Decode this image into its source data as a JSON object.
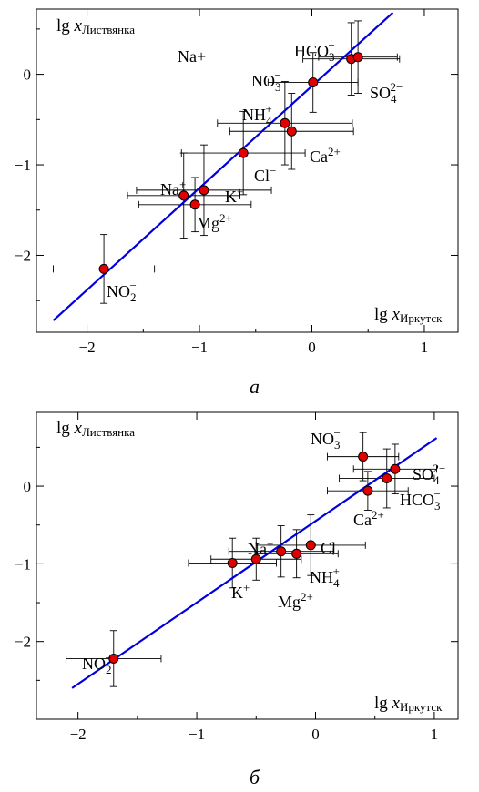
{
  "chart_data": [
    {
      "type": "scatter",
      "panel_label": "а",
      "xlabel_prefix": "lg ",
      "xlabel_var": "x",
      "xlabel_sub": "Иркутск",
      "ylabel_prefix": "lg ",
      "ylabel_var": "x",
      "ylabel_sub": "Листвянка",
      "xlim": [
        -2.45,
        1.3
      ],
      "ylim": [
        -2.85,
        0.72
      ],
      "xticks": [
        -2,
        -1,
        0,
        1
      ],
      "yticks": [
        -2,
        -1,
        0
      ],
      "xticklabels": [
        "−2",
        "−1",
        "0",
        "1"
      ],
      "yticklabels": [
        "−2",
        "−1",
        "0"
      ],
      "fit_line": {
        "x1": -2.3,
        "y1": -2.72,
        "x2": 0.72,
        "y2": 0.68
      },
      "extra_text": "Na+",
      "points": [
        {
          "label": "NO2−",
          "x": -1.85,
          "y": -2.15,
          "xerr": 0.45,
          "yerr": 0.38
        },
        {
          "label": "Na+",
          "x": -1.14,
          "y": -1.34,
          "xerr": 0.5,
          "yerr": 0.47
        },
        {
          "label": "Mg2+",
          "x": -1.04,
          "y": -1.44,
          "xerr": 0.5,
          "yerr": 0.3
        },
        {
          "label": "K+",
          "x": -0.96,
          "y": -1.28,
          "xerr": 0.6,
          "yerr": 0.5
        },
        {
          "label": "Cl−",
          "x": -0.61,
          "y": -0.87,
          "xerr": 0.55,
          "yerr": 0.46
        },
        {
          "label": "NH4+",
          "x": -0.24,
          "y": -0.54,
          "xerr": 0.6,
          "yerr": 0.46
        },
        {
          "label": "Ca2+",
          "x": -0.18,
          "y": -0.63,
          "xerr": 0.55,
          "yerr": 0.42
        },
        {
          "label": "NO3−",
          "x": 0.01,
          "y": -0.09,
          "xerr": 0.4,
          "yerr": 0.33
        },
        {
          "label": "HCO3−",
          "x": 0.35,
          "y": 0.17,
          "xerr": 0.43,
          "yerr": 0.4
        },
        {
          "label": "SO42−",
          "x": 0.41,
          "y": 0.19,
          "xerr": 0.35,
          "yerr": 0.4
        }
      ],
      "labels_text": {
        "NO2": {
          "base": "NO",
          "sub": "2",
          "sup": "−"
        },
        "Na": {
          "base": "Na",
          "sub": "",
          "sup": "+"
        },
        "Mg": {
          "base": "Mg",
          "sub": "",
          "sup": "2+"
        },
        "K": {
          "base": "K",
          "sub": "",
          "sup": "+"
        },
        "Cl": {
          "base": "Cl",
          "sub": "",
          "sup": "−"
        },
        "NH4": {
          "base": "NH",
          "sub": "4",
          "sup": "+"
        },
        "Ca": {
          "base": "Ca",
          "sub": "",
          "sup": "2+"
        },
        "NO3": {
          "base": "NO",
          "sub": "3",
          "sup": "−"
        },
        "HCO3": {
          "base": "HCO",
          "sub": "3",
          "sup": "−"
        },
        "SO4": {
          "base": "SO",
          "sub": "4",
          "sup": "2−"
        }
      }
    },
    {
      "type": "scatter",
      "panel_label": "б",
      "xlabel_prefix": "lg ",
      "xlabel_var": "x",
      "xlabel_sub": "Иркутск",
      "ylabel_prefix": "lg ",
      "ylabel_var": "x",
      "ylabel_sub": "Листвянка",
      "xlim": [
        -2.35,
        1.2
      ],
      "ylim": [
        -3.0,
        0.95
      ],
      "xticks": [
        -2,
        -1,
        0,
        1
      ],
      "yticks": [
        -2,
        -1,
        0
      ],
      "xticklabels": [
        "−2",
        "−1",
        "0",
        "1"
      ],
      "yticklabels": [
        "−2",
        "−1",
        "0"
      ],
      "fit_line": {
        "x1": -2.05,
        "y1": -2.6,
        "x2": 1.02,
        "y2": 0.62
      },
      "points": [
        {
          "label": "NO2−",
          "x": -1.7,
          "y": -2.22,
          "xerr": 0.4,
          "yerr": 0.36
        },
        {
          "label": "K+",
          "x": -0.7,
          "y": -0.99,
          "xerr": 0.37,
          "yerr": 0.32
        },
        {
          "label": "Mg2+",
          "x": -0.5,
          "y": -0.94,
          "xerr": 0.38,
          "yerr": 0.27
        },
        {
          "label": "Na+",
          "x": -0.29,
          "y": -0.84,
          "xerr": 0.44,
          "yerr": 0.33
        },
        {
          "label": "NH4+",
          "x": -0.16,
          "y": -0.87,
          "xerr": 0.35,
          "yerr": 0.31
        },
        {
          "label": "Cl−",
          "x": -0.04,
          "y": -0.76,
          "xerr": 0.46,
          "yerr": 0.39
        },
        {
          "label": "NO3−",
          "x": 0.4,
          "y": 0.38,
          "xerr": 0.3,
          "yerr": 0.31
        },
        {
          "label": "Ca2+",
          "x": 0.44,
          "y": -0.06,
          "xerr": 0.34,
          "yerr": 0.25
        },
        {
          "label": "HCO3−",
          "x": 0.6,
          "y": 0.1,
          "xerr": 0.4,
          "yerr": 0.38
        },
        {
          "label": "SO42−",
          "x": 0.67,
          "y": 0.22,
          "xerr": 0.35,
          "yerr": 0.32
        }
      ],
      "labels_text": {
        "NO2": {
          "base": "NO",
          "sub": "2",
          "sup": "−"
        },
        "K": {
          "base": "K",
          "sub": "",
          "sup": "+"
        },
        "Mg": {
          "base": "Mg",
          "sub": "",
          "sup": "2+"
        },
        "Na": {
          "base": "Na",
          "sub": "",
          "sup": "+"
        },
        "NH4": {
          "base": "NH",
          "sub": "4",
          "sup": "+"
        },
        "Cl": {
          "base": "Cl",
          "sub": "",
          "sup": "−"
        },
        "NO3": {
          "base": "NO",
          "sub": "3",
          "sup": "−"
        },
        "Ca": {
          "base": "Ca",
          "sub": "",
          "sup": "2+"
        },
        "HCO3": {
          "base": "HCO",
          "sub": "3",
          "sup": "−"
        },
        "SO4": {
          "base": "SO",
          "sub": "4",
          "sup": "2−"
        }
      }
    }
  ],
  "colors": {
    "fit_line": "#0000dd",
    "marker_fill": "#e00000",
    "axes": "#000000"
  }
}
